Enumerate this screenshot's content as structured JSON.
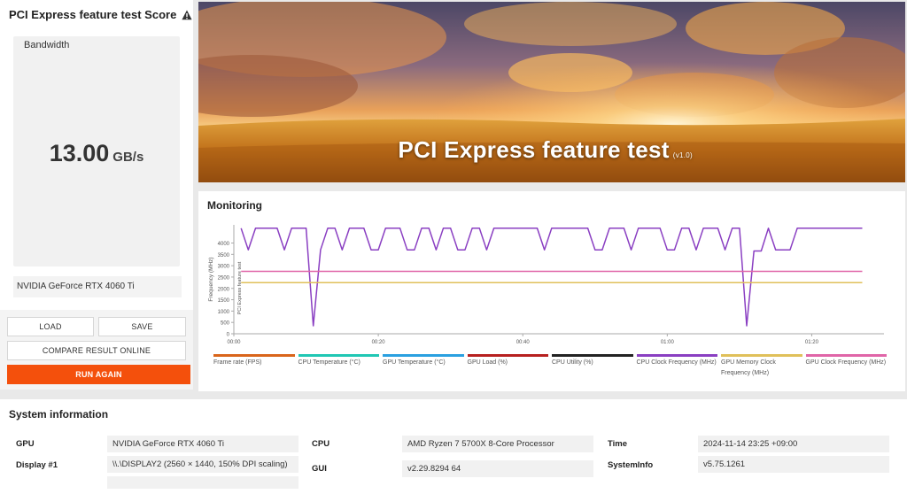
{
  "score": {
    "title": "PCI Express feature test Score",
    "metric_label": "Bandwidth",
    "value": "13.00",
    "unit": "GB/s",
    "gpu_name": "NVIDIA GeForce RTX 4060 Ti"
  },
  "buttons": {
    "load": "LOAD",
    "save": "SAVE",
    "compare": "COMPARE RESULT ONLINE",
    "run_again": "RUN AGAIN"
  },
  "banner": {
    "title": "PCI Express feature test",
    "version": "(v1.0)"
  },
  "monitoring": {
    "title": "Monitoring",
    "y_axis_label": "Frequency (MHz)",
    "segment_label": "PCI Express feature test",
    "legend": [
      {
        "label": "Frame rate (FPS)",
        "color": "#d9651b"
      },
      {
        "label": "CPU Temperature (°C)",
        "color": "#20c7b4"
      },
      {
        "label": "GPU Temperature (°C)",
        "color": "#2aa0e0"
      },
      {
        "label": "GPU Load (%)",
        "color": "#b7201f"
      },
      {
        "label": "CPU Utility (%)",
        "color": "#222222"
      },
      {
        "label": "CPU Clock Frequency (MHz)",
        "color": "#8a3fc2"
      },
      {
        "label": "GPU Memory Clock Frequency (MHz)",
        "color": "#e0c05a"
      },
      {
        "label": "GPU Clock Frequency (MHz)",
        "color": "#e065a8"
      }
    ]
  },
  "chart_data": {
    "type": "line",
    "ylabel": "Frequency (MHz)",
    "ylim": [
      0,
      4800
    ],
    "yticks": [
      0,
      500,
      1000,
      1500,
      2000,
      2500,
      3000,
      3500,
      4000
    ],
    "xlim": [
      0,
      90
    ],
    "xticks": [
      0,
      20,
      40,
      60,
      80
    ],
    "xtick_labels": [
      "00:00",
      "00:20",
      "00:40",
      "01:00",
      "01:20"
    ],
    "grid": false,
    "series": [
      {
        "name": "CPU Clock Frequency (MHz)",
        "color": "#8a3fc2",
        "points": [
          [
            1,
            4650
          ],
          [
            2,
            3700
          ],
          [
            3,
            4650
          ],
          [
            6,
            4650
          ],
          [
            7,
            3700
          ],
          [
            8,
            4650
          ],
          [
            10,
            4650
          ],
          [
            11,
            350
          ],
          [
            12,
            3700
          ],
          [
            13,
            4650
          ],
          [
            14,
            4650
          ],
          [
            15,
            3700
          ],
          [
            16,
            4650
          ],
          [
            18,
            4650
          ],
          [
            19,
            3700
          ],
          [
            20,
            3700
          ],
          [
            21,
            4650
          ],
          [
            23,
            4650
          ],
          [
            24,
            3700
          ],
          [
            25,
            3700
          ],
          [
            26,
            4650
          ],
          [
            27,
            4650
          ],
          [
            28,
            3700
          ],
          [
            29,
            4650
          ],
          [
            30,
            4650
          ],
          [
            31,
            3700
          ],
          [
            32,
            3700
          ],
          [
            33,
            4650
          ],
          [
            34,
            4650
          ],
          [
            35,
            3700
          ],
          [
            36,
            4650
          ],
          [
            42,
            4650
          ],
          [
            43,
            3700
          ],
          [
            44,
            4650
          ],
          [
            49,
            4650
          ],
          [
            50,
            3700
          ],
          [
            51,
            3700
          ],
          [
            52,
            4650
          ],
          [
            54,
            4650
          ],
          [
            55,
            3700
          ],
          [
            56,
            4650
          ],
          [
            59,
            4650
          ],
          [
            60,
            3700
          ],
          [
            61,
            3700
          ],
          [
            62,
            4650
          ],
          [
            63,
            4650
          ],
          [
            64,
            3700
          ],
          [
            65,
            4650
          ],
          [
            67,
            4650
          ],
          [
            68,
            3700
          ],
          [
            69,
            4650
          ],
          [
            70,
            4650
          ],
          [
            71,
            350
          ],
          [
            72,
            3650
          ],
          [
            73,
            3650
          ],
          [
            74,
            4650
          ],
          [
            75,
            3700
          ],
          [
            76,
            3700
          ],
          [
            77,
            3700
          ],
          [
            78,
            4650
          ],
          [
            80,
            4650
          ],
          [
            81,
            4650
          ],
          [
            87,
            4650
          ]
        ]
      },
      {
        "name": "GPU Clock Frequency (MHz)",
        "color": "#e065a8",
        "points": [
          [
            1,
            2750
          ],
          [
            87,
            2750
          ]
        ]
      },
      {
        "name": "GPU Memory Clock Frequency (MHz)",
        "color": "#e0c05a",
        "points": [
          [
            1,
            2250
          ],
          [
            87,
            2250
          ]
        ]
      }
    ]
  },
  "system_info": {
    "title": "System information",
    "columns": [
      [
        {
          "label": "GPU",
          "value": "NVIDIA GeForce RTX 4060 Ti"
        },
        {
          "label": "Display #1",
          "value": "\\\\.\\DISPLAY2 (2560 × 1440, 150% DPI scaling)"
        }
      ],
      [
        {
          "label": "CPU",
          "value": "AMD Ryzen 7 5700X 8-Core Processor"
        },
        {
          "label": "GUI",
          "value": "v2.29.8294 64"
        }
      ],
      [
        {
          "label": "Time",
          "value": "2024-11-14 23:25 +09:00"
        },
        {
          "label": "SystemInfo",
          "value": "v5.75.1261"
        }
      ]
    ]
  }
}
